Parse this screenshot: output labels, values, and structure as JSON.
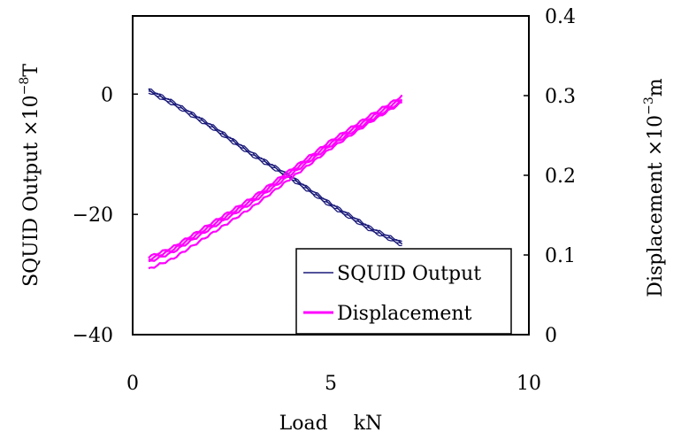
{
  "chart_data": {
    "type": "line",
    "xlabel": "Load　 kN",
    "ylabel_left": "SQUID Output ×10",
    "ylabel_left_exp": "−8",
    "ylabel_left_unit": "T",
    "ylabel_right": "Displacement ×10",
    "ylabel_right_exp": "−3",
    "ylabel_right_unit": "m",
    "xlim": [
      0,
      10
    ],
    "ylim_left": [
      -40,
      13
    ],
    "ylim_right": [
      0,
      0.4
    ],
    "x_ticks": [
      "0",
      "5",
      "10"
    ],
    "y_left_ticks": [
      "0",
      "−20",
      "−40"
    ],
    "y_right_ticks": [
      "0.4",
      "0.3",
      "0.2",
      "0.1",
      "0"
    ],
    "grid": false,
    "legend_position": "bottom-right",
    "series": [
      {
        "name": "SQUID Output",
        "axis": "left",
        "color": "#1a1a7a",
        "x": [
          0.4,
          1.0,
          2.0,
          3.0,
          4.0,
          5.0,
          6.0,
          6.8
        ],
        "y": [
          0.5,
          -1.5,
          -5.5,
          -10.0,
          -14.0,
          -18.5,
          -22.5,
          -25.0
        ]
      },
      {
        "name": "Displacement",
        "axis": "right",
        "color": "#ff00ff",
        "x": [
          0.4,
          1.0,
          2.0,
          3.0,
          4.0,
          5.0,
          6.0,
          6.8
        ],
        "y": [
          0.091,
          0.103,
          0.134,
          0.165,
          0.201,
          0.237,
          0.269,
          0.293
        ]
      }
    ]
  }
}
